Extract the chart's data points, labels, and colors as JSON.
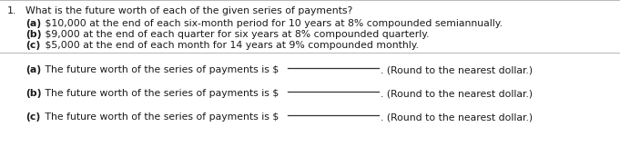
{
  "title_number": "1.",
  "title_text": "What is the future worth of each of the given series of payments?",
  "part_a_label": "(a)",
  "part_a_rest": " $10,000 at the end of each six-month period for 10 years at 8% compounded semiannually.",
  "part_b_label": "(b)",
  "part_b_rest": " $9,000 at the end of each quarter for six years at 8% compounded quarterly.",
  "part_c_label": "(c)",
  "part_c_rest": " $5,000 at the end of each month for 14 years at 9% compounded monthly.",
  "ans_a_label": "(a)",
  "ans_a_rest": " The future worth of the series of payments is $",
  "ans_b_label": "(b)",
  "ans_b_rest": " The future worth of the series of payments is $",
  "ans_c_label": "(c)",
  "ans_c_rest": " The future worth of the series of payments is $",
  "round_text": ". (Round to the nearest dollar.)",
  "bg_color": "#ffffff",
  "text_color": "#1a1a1a",
  "font_size": 7.8,
  "line_color": "#333333",
  "divider_color": "#bbbbbb"
}
